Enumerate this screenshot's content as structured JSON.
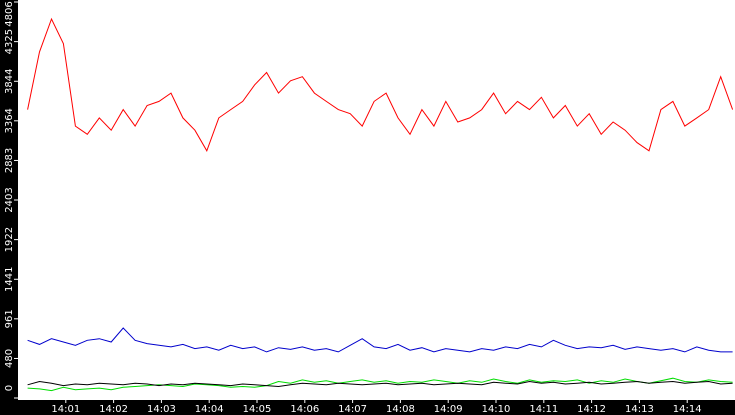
{
  "chart_data": {
    "type": "line",
    "x": [
      0.2,
      0.45,
      0.7,
      0.95,
      1.2,
      1.45,
      1.7,
      1.95,
      2.2,
      2.45,
      2.7,
      2.95,
      3.2,
      3.45,
      3.7,
      3.95,
      4.2,
      4.45,
      4.7,
      4.95,
      5.2,
      5.45,
      5.7,
      5.95,
      6.2,
      6.45,
      6.7,
      6.95,
      7.2,
      7.45,
      7.7,
      7.95,
      8.2,
      8.45,
      8.7,
      8.95,
      9.2,
      9.45,
      9.7,
      9.95,
      10.2,
      10.45,
      10.7,
      10.95,
      11.2,
      11.45,
      11.7,
      11.95,
      12.2,
      12.45,
      12.7,
      12.95,
      13.2,
      13.45,
      13.7,
      13.95,
      14.2,
      14.45,
      14.7,
      14.95
    ],
    "series": [
      {
        "color": "#ff0000",
        "values": [
          3500,
          4200,
          4600,
          4300,
          3300,
          3200,
          3400,
          3250,
          3500,
          3300,
          3550,
          3600,
          3700,
          3400,
          3250,
          3000,
          3400,
          3500,
          3600,
          3800,
          3950,
          3700,
          3850,
          3900,
          3700,
          3600,
          3500,
          3450,
          3300,
          3600,
          3700,
          3400,
          3200,
          3500,
          3300,
          3600,
          3350,
          3400,
          3500,
          3700,
          3450,
          3600,
          3500,
          3650,
          3400,
          3550,
          3300,
          3450,
          3200,
          3350,
          3250,
          3100,
          3000,
          3500,
          3600,
          3300,
          3400,
          3500,
          3900,
          3500
        ]
      },
      {
        "color": "#0000cc",
        "values": [
          700,
          650,
          720,
          680,
          640,
          700,
          720,
          680,
          850,
          700,
          660,
          640,
          620,
          650,
          600,
          620,
          580,
          640,
          600,
          620,
          560,
          610,
          590,
          620,
          580,
          600,
          560,
          640,
          720,
          620,
          600,
          650,
          580,
          610,
          560,
          600,
          580,
          560,
          600,
          580,
          620,
          600,
          650,
          620,
          700,
          640,
          600,
          620,
          610,
          640,
          590,
          620,
          600,
          580,
          600,
          560,
          620,
          580,
          560,
          560
        ]
      },
      {
        "color": "#00dd00",
        "values": [
          120,
          110,
          90,
          130,
          100,
          110,
          120,
          100,
          130,
          140,
          150,
          160,
          150,
          140,
          170,
          160,
          150,
          130,
          140,
          130,
          150,
          200,
          180,
          220,
          190,
          210,
          180,
          200,
          220,
          190,
          210,
          180,
          200,
          190,
          220,
          200,
          180,
          210,
          190,
          230,
          200,
          180,
          220,
          190,
          210,
          200,
          220,
          180,
          210,
          190,
          230,
          200,
          180,
          210,
          240,
          200,
          190,
          220,
          200,
          190
        ]
      },
      {
        "color": "#000000",
        "values": [
          160,
          200,
          180,
          150,
          170,
          160,
          180,
          170,
          160,
          180,
          170,
          150,
          170,
          160,
          180,
          170,
          160,
          150,
          170,
          160,
          150,
          140,
          160,
          180,
          170,
          160,
          180,
          170,
          160,
          170,
          180,
          160,
          170,
          180,
          160,
          170,
          180,
          170,
          160,
          190,
          180,
          170,
          200,
          180,
          190,
          170,
          180,
          190,
          170,
          180,
          190,
          200,
          180,
          190,
          200,
          180,
          190,
          200,
          170,
          180
        ]
      }
    ],
    "xlim": [
      0,
      15
    ],
    "xticks": [
      {
        "value": 1,
        "label": "14:01"
      },
      {
        "value": 2,
        "label": "14:02"
      },
      {
        "value": 3,
        "label": "14:03"
      },
      {
        "value": 4,
        "label": "14:04"
      },
      {
        "value": 5,
        "label": "14:05"
      },
      {
        "value": 6,
        "label": "14:06"
      },
      {
        "value": 7,
        "label": "14:07"
      },
      {
        "value": 8,
        "label": "14:08"
      },
      {
        "value": 9,
        "label": "14:09"
      },
      {
        "value": 10,
        "label": "14:10"
      },
      {
        "value": 11,
        "label": "14:11"
      },
      {
        "value": 12,
        "label": "14:12"
      },
      {
        "value": 13,
        "label": "14:13"
      },
      {
        "value": 14,
        "label": "14:14"
      }
    ],
    "ylim": [
      0,
      4806
    ],
    "yticks": [
      0,
      480,
      961,
      1441,
      1922,
      2403,
      2883,
      3364,
      3844,
      4325,
      4806
    ]
  }
}
